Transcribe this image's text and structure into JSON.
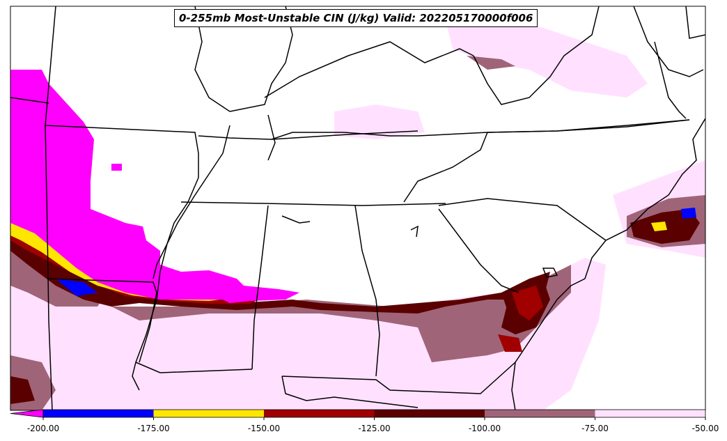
{
  "title": "0-255mb Most-Unstable CIN (J/kg) Valid: 202205170000f006",
  "colorbar": {
    "bins": [
      {
        "from": -200,
        "to": -175,
        "color": "#0000ff"
      },
      {
        "from": -175,
        "to": -150,
        "color": "#ffe600"
      },
      {
        "from": -150,
        "to": -125,
        "color": "#a00000"
      },
      {
        "from": -125,
        "to": -100,
        "color": "#5a0000"
      },
      {
        "from": -100,
        "to": -75,
        "color": "#a06478"
      },
      {
        "from": -75,
        "to": -50,
        "color": "#ffe1ff"
      }
    ],
    "under_color": "#ff00ff",
    "tick_labels": [
      "-200.00",
      "-175.00",
      "-150.00",
      "-125.00",
      "-100.00",
      "-75.00",
      "-50.00"
    ]
  },
  "colors": {
    "lt_pink": "#ffe1ff",
    "mauve": "#a06478",
    "dk_maroon": "#5a0000",
    "maroon": "#a00000",
    "yellow": "#ffe600",
    "blue": "#0000ff",
    "magenta": "#ff00ff",
    "border": "#000000"
  }
}
